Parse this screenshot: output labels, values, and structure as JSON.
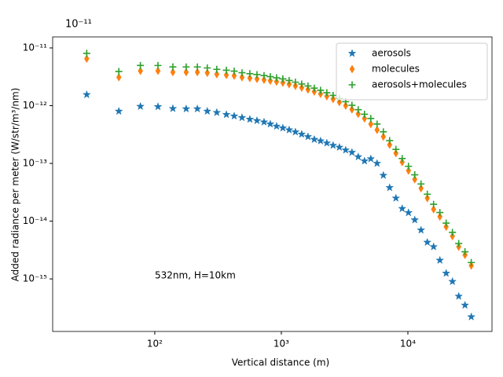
{
  "chart_data": {
    "type": "scatter",
    "offset_text": "10⁻¹¹",
    "xlabel": "Vertical distance (m)",
    "ylabel": "Added radiance per meter (W/str/m³/nm)",
    "annotation": "532nm, H=10km",
    "log_x": true,
    "log_y": true,
    "legend": "upper right",
    "xlim": [
      15.6,
      46200
    ],
    "ylim": [
      1.23e-16,
      1.55e-11
    ],
    "xticks": [
      {
        "value": 100,
        "label": "10²"
      },
      {
        "value": 1000,
        "label": "10³"
      },
      {
        "value": 10000,
        "label": "10⁴"
      }
    ],
    "yticks": [
      {
        "value": 1e-15,
        "label": "10⁻¹⁵"
      },
      {
        "value": 1e-14,
        "label": "10⁻¹⁴"
      },
      {
        "value": 1e-13,
        "label": "10⁻¹³"
      },
      {
        "value": 1e-12,
        "label": "10⁻¹²"
      },
      {
        "value": 1e-11,
        "label": "10⁻¹¹"
      }
    ],
    "x": [
      29,
      52,
      77,
      106,
      139,
      177,
      217,
      260,
      309,
      368,
      424,
      489,
      564,
      642,
      730,
      818,
      917,
      1028,
      1153,
      1292,
      1449,
      1624,
      1821,
      2041,
      2288,
      2565,
      2876,
      3224,
      3614,
      4052,
      4542,
      5092,
      5708,
      6399,
      7174,
      8042,
      9016,
      10107,
      11331,
      12702,
      14240,
      15963,
      17895,
      20062,
      22490,
      25213,
      28265,
      31686
    ],
    "series": [
      {
        "name": "aerosols",
        "color": "#1f77b4",
        "marker": "star",
        "values": [
          1.55e-12,
          8e-13,
          9.7e-13,
          9.6e-13,
          8.9e-13,
          8.8e-13,
          8.8e-13,
          8e-13,
          7.6e-13,
          7e-13,
          6.6e-13,
          6.2e-13,
          5.8e-13,
          5.5e-13,
          5.2e-13,
          4.8e-13,
          4.4e-13,
          4.1e-13,
          3.8e-13,
          3.5e-13,
          3.2e-13,
          2.9e-13,
          2.6e-13,
          2.45e-13,
          2.25e-13,
          2.05e-13,
          1.9e-13,
          1.7e-13,
          1.55e-13,
          1.3e-13,
          1.1e-13,
          1.2e-13,
          1e-13,
          6.2e-14,
          3.8e-14,
          2.5e-14,
          1.65e-14,
          1.4e-14,
          1.05e-14,
          7e-15,
          4.3e-15,
          3.6e-15,
          2.1e-15,
          1.25e-15,
          9e-16,
          5e-16,
          3.5e-16,
          2.2e-16
        ]
      },
      {
        "name": "molecules",
        "color": "#ff7f0e",
        "marker": "thin_diamond",
        "values": [
          6.5e-12,
          3.1e-12,
          4e-12,
          4e-12,
          3.8e-12,
          3.8e-12,
          3.8e-12,
          3.7e-12,
          3.5e-12,
          3.4e-12,
          3.3e-12,
          3.1e-12,
          3e-12,
          2.9e-12,
          2.8e-12,
          2.7e-12,
          2.6e-12,
          2.5e-12,
          2.35e-12,
          2.2e-12,
          2.05e-12,
          1.9e-12,
          1.75e-12,
          1.6e-12,
          1.45e-12,
          1.3e-12,
          1.15e-12,
          1e-12,
          8.6e-13,
          7.2e-13,
          6e-13,
          4.8e-13,
          3.8e-13,
          2.9e-13,
          2.1e-13,
          1.5e-13,
          1.05e-13,
          7.5e-14,
          5.3e-14,
          3.7e-14,
          2.5e-14,
          1.6e-14,
          1.2e-14,
          8e-15,
          5.5e-15,
          3.6e-15,
          2.6e-15,
          1.7e-15
        ]
      },
      {
        "name": "aerosols+molecules",
        "color": "#2ca02c",
        "marker": "plus",
        "values": [
          8.05e-12,
          3.9e-12,
          4.97e-12,
          4.96e-12,
          4.69e-12,
          4.68e-12,
          4.68e-12,
          4.5e-12,
          4.26e-12,
          4.1e-12,
          3.96e-12,
          3.72e-12,
          3.58e-12,
          3.45e-12,
          3.32e-12,
          3.18e-12,
          3.04e-12,
          2.91e-12,
          2.73e-12,
          2.55e-12,
          2.37e-12,
          2.19e-12,
          2.01e-12,
          1.845e-12,
          1.675e-12,
          1.505e-12,
          1.34e-12,
          1.17e-12,
          1.015e-12,
          8.5e-13,
          7.1e-13,
          6e-13,
          4.8e-13,
          3.52e-13,
          2.48e-13,
          1.75e-13,
          1.215e-13,
          8.9e-14,
          6.35e-14,
          4.4e-14,
          2.93e-14,
          1.96e-14,
          1.41e-14,
          9.25e-15,
          6.4e-15,
          4.1e-15,
          2.95e-15,
          1.92e-15
        ]
      }
    ]
  }
}
